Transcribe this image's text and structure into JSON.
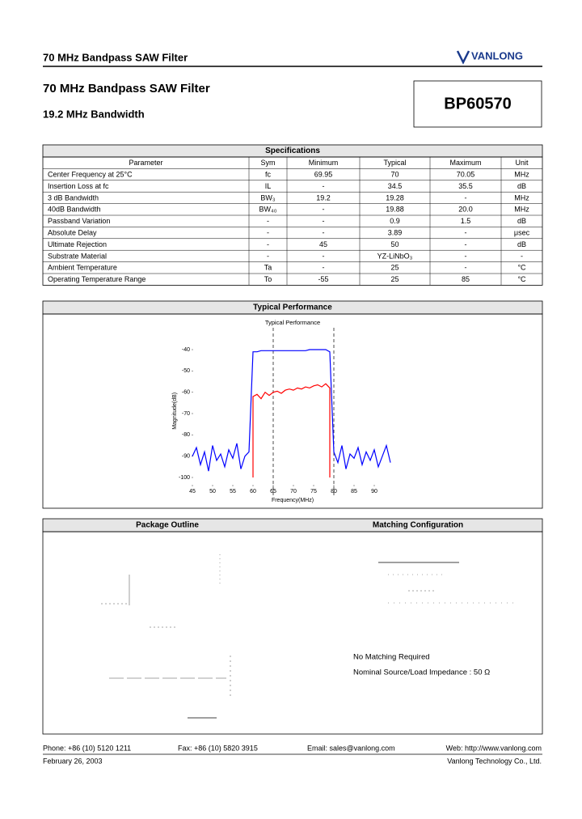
{
  "header": {
    "title": "70 MHz Bandpass SAW Filter",
    "logo": "VANLONG"
  },
  "title": "70 MHz Bandpass SAW Filter",
  "subtitle": "19.2 MHz Bandwidth",
  "part_number": "BP60570",
  "specifications": {
    "title": "Specifications",
    "columns": [
      "Parameter",
      "Sym",
      "Minimum",
      "Typical",
      "Maximum",
      "Unit"
    ],
    "rows": [
      [
        "Center Frequency at 25°C",
        "fc",
        "69.95",
        "70",
        "70.05",
        "MHz"
      ],
      [
        "Insertion Loss at fc",
        "IL",
        "-",
        "34.5",
        "35.5",
        "dB"
      ],
      [
        "3 dB Bandwidth",
        "BW₃",
        "19.2",
        "19.28",
        "-",
        "MHz"
      ],
      [
        "40dB Bandwidth",
        "BW₄₀",
        "-",
        "19.88",
        "20.0",
        "MHz"
      ],
      [
        "Passband Variation",
        "-",
        "-",
        "0.9",
        "1.5",
        "dB"
      ],
      [
        "Absolute Delay",
        "-",
        "-",
        "3.89",
        "-",
        "μsec"
      ],
      [
        "Ultimate Rejection",
        "-",
        "45",
        "50",
        "-",
        "dB"
      ],
      [
        "Substrate Material",
        "-",
        "-",
        "YZ-LiNbO₃",
        "-",
        "-"
      ],
      [
        "Ambient Temperature",
        "Ta",
        "-",
        "25",
        "-",
        "°C"
      ],
      [
        "Operating Temperature Range",
        "To",
        "-55",
        "25",
        "85",
        "°C"
      ]
    ]
  },
  "performance_section": "Typical Performance",
  "chart_data": {
    "type": "line",
    "title": "Typical Performance",
    "x_label": "Frequency(MHz)",
    "y_label": "Magnitude(dB)",
    "xlim": [
      45,
      95
    ],
    "ylim": [
      -100,
      -30
    ],
    "xticks": [
      45,
      50,
      55,
      60,
      65,
      70,
      75,
      80,
      85,
      90
    ],
    "yticks": [
      -40,
      -50,
      -60,
      -70,
      -80,
      -90,
      -100
    ],
    "series": [
      {
        "color": "#0000ff",
        "x": [
          45,
          46,
          47,
          48,
          49,
          50,
          51,
          52,
          53,
          54,
          55,
          56,
          57,
          58,
          59,
          60,
          61,
          62,
          63,
          64,
          65,
          66,
          67,
          68,
          69,
          70,
          71,
          72,
          73,
          74,
          75,
          76,
          77,
          78,
          79,
          80,
          81,
          82,
          83,
          84,
          85,
          86,
          87,
          88,
          89,
          90,
          91,
          92,
          93,
          94
        ],
        "values": [
          -90,
          -86,
          -94,
          -88,
          -97,
          -85,
          -92,
          -89,
          -95,
          -87,
          -91,
          -84,
          -96,
          -90,
          -88,
          -41,
          -41,
          -40.5,
          -40.5,
          -40.5,
          -40.5,
          -40.5,
          -40.5,
          -40.5,
          -40.5,
          -40.5,
          -40.5,
          -40.5,
          -40.5,
          -40,
          -40,
          -40,
          -40,
          -40,
          -41,
          -88,
          -93,
          -85,
          -96,
          -89,
          -91,
          -86,
          -94,
          -88,
          -92,
          -87,
          -95,
          -90,
          -85,
          -93
        ]
      },
      {
        "color": "#ff0000",
        "x": [
          60,
          60,
          61,
          62,
          63,
          64,
          65,
          66,
          67,
          68,
          69,
          70,
          71,
          72,
          73,
          74,
          75,
          76,
          77,
          78,
          79,
          79
        ],
        "values": [
          -100,
          -62,
          -61,
          -63,
          -60,
          -61.5,
          -60,
          -59.5,
          -60.5,
          -59,
          -58.5,
          -59,
          -58,
          -58.5,
          -57.5,
          -58,
          -57,
          -56.5,
          -57.5,
          -56,
          -58,
          -100
        ]
      }
    ]
  },
  "package_section": "Package Outline",
  "matching_section": "Matching Configuration",
  "matching_notes": [
    "No Matching Required",
    "Nominal Source/Load Impedance : 50 Ω"
  ],
  "footer": {
    "phone": "Phone: +86 (10) 5120 1211",
    "fax": "Fax: +86 (10) 5820 3915",
    "email": "Email: sales@vanlong.com",
    "web": "Web: http://www.vanlong.com",
    "date": "February 26, 2003",
    "company": "Vanlong Technology Co., Ltd."
  }
}
